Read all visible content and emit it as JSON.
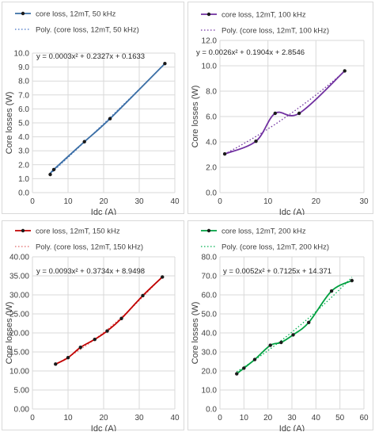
{
  "chart_data": [
    {
      "type": "line",
      "xlabel": "Idc (A)",
      "ylabel": "Core losses (W)",
      "xlim": [
        0,
        40
      ],
      "ylim": [
        0,
        10
      ],
      "xticks": [
        "0",
        "10",
        "20",
        "30",
        "40"
      ],
      "yticks": [
        "0.0",
        "1.0",
        "2.0",
        "3.0",
        "4.0",
        "5.0",
        "6.0",
        "7.0",
        "8.0",
        "9.0",
        "10.0"
      ],
      "grid": true,
      "legend_position": "top",
      "series": [
        {
          "name": "core loss, 12mT, 50 kHz",
          "style": "solid-markers",
          "color": "#3a6ea5",
          "x": [
            5,
            6,
            14.6,
            21.8,
            37.2
          ],
          "y": [
            1.3,
            1.65,
            3.65,
            5.3,
            9.25
          ]
        },
        {
          "name": "Poly. (core loss, 12mT, 50 kHz)",
          "style": "dotted",
          "color": "#4472c4",
          "equation": "y = 0.0003x² + 0.2327x + 0.1633"
        }
      ]
    },
    {
      "type": "line",
      "xlabel": "Idc (A)",
      "ylabel": "Core losses (W)",
      "xlim": [
        0,
        30
      ],
      "ylim": [
        0,
        12
      ],
      "xticks": [
        "0",
        "10",
        "20",
        "30"
      ],
      "yticks": [
        "0.0",
        "2.0",
        "4.0",
        "6.0",
        "8.0",
        "10.0",
        "12.0"
      ],
      "grid": true,
      "legend_position": "top",
      "series": [
        {
          "name": "core loss, 12mT, 100 kHz",
          "style": "solid-markers",
          "color": "#7030a0",
          "x": [
            1,
            7.5,
            11.5,
            16.5,
            26
          ],
          "y": [
            3.05,
            4.05,
            6.25,
            6.25,
            9.6
          ]
        },
        {
          "name": "Poly. (core loss, 12mT, 100 kHz)",
          "style": "dotted",
          "color": "#7030a0",
          "equation": "y = 0.0026x² + 0.1904x + 2.8546"
        }
      ]
    },
    {
      "type": "line",
      "xlabel": "Idc (A)",
      "ylabel": "Core losses (W)",
      "xlim": [
        0,
        40
      ],
      "ylim": [
        0,
        40
      ],
      "xticks": [
        "0",
        "10",
        "20",
        "30",
        "40"
      ],
      "yticks": [
        "0.00",
        "5.00",
        "10.00",
        "15.00",
        "20.00",
        "25.00",
        "30.00",
        "35.00",
        "40.00"
      ],
      "grid": true,
      "legend_position": "top",
      "series": [
        {
          "name": "core loss, 12mT, 150 kHz",
          "style": "solid-markers",
          "color": "#c00000",
          "x": [
            6.5,
            10,
            13.5,
            17.5,
            21,
            25,
            31,
            36.5
          ],
          "y": [
            11.8,
            13.5,
            16.2,
            18.3,
            20.5,
            23.8,
            29.8,
            34.7
          ]
        },
        {
          "name": "Poly. (core loss, 12mT, 150 kHz)",
          "style": "dotted",
          "color": "#e06666",
          "equation": "y = 0.0093x² + 0.3734x + 8.9498"
        }
      ]
    },
    {
      "type": "line",
      "xlabel": "Idc (A)",
      "ylabel": "Core losses (W)",
      "xlim": [
        0,
        60
      ],
      "ylim": [
        0,
        80
      ],
      "xticks": [
        "0",
        "10",
        "20",
        "30",
        "40",
        "50",
        "60"
      ],
      "yticks": [
        "0.0",
        "10.0",
        "20.0",
        "30.0",
        "40.0",
        "50.0",
        "60.0",
        "70.0",
        "80.0"
      ],
      "grid": true,
      "legend_position": "top",
      "series": [
        {
          "name": "core loss, 12mT, 200 kHz",
          "style": "solid-markers",
          "color": "#00a040",
          "x": [
            7,
            10,
            14.5,
            21,
            25.5,
            30.5,
            37,
            46.5,
            55
          ],
          "y": [
            18.5,
            21.5,
            26,
            33.5,
            35,
            39,
            45.5,
            62,
            67.5
          ]
        },
        {
          "name": "Poly. (core loss, 12mT, 200 kHz)",
          "style": "dotted",
          "color": "#00b050",
          "equation": "y = 0.0052x² + 0.7125x + 14.371"
        }
      ]
    }
  ]
}
